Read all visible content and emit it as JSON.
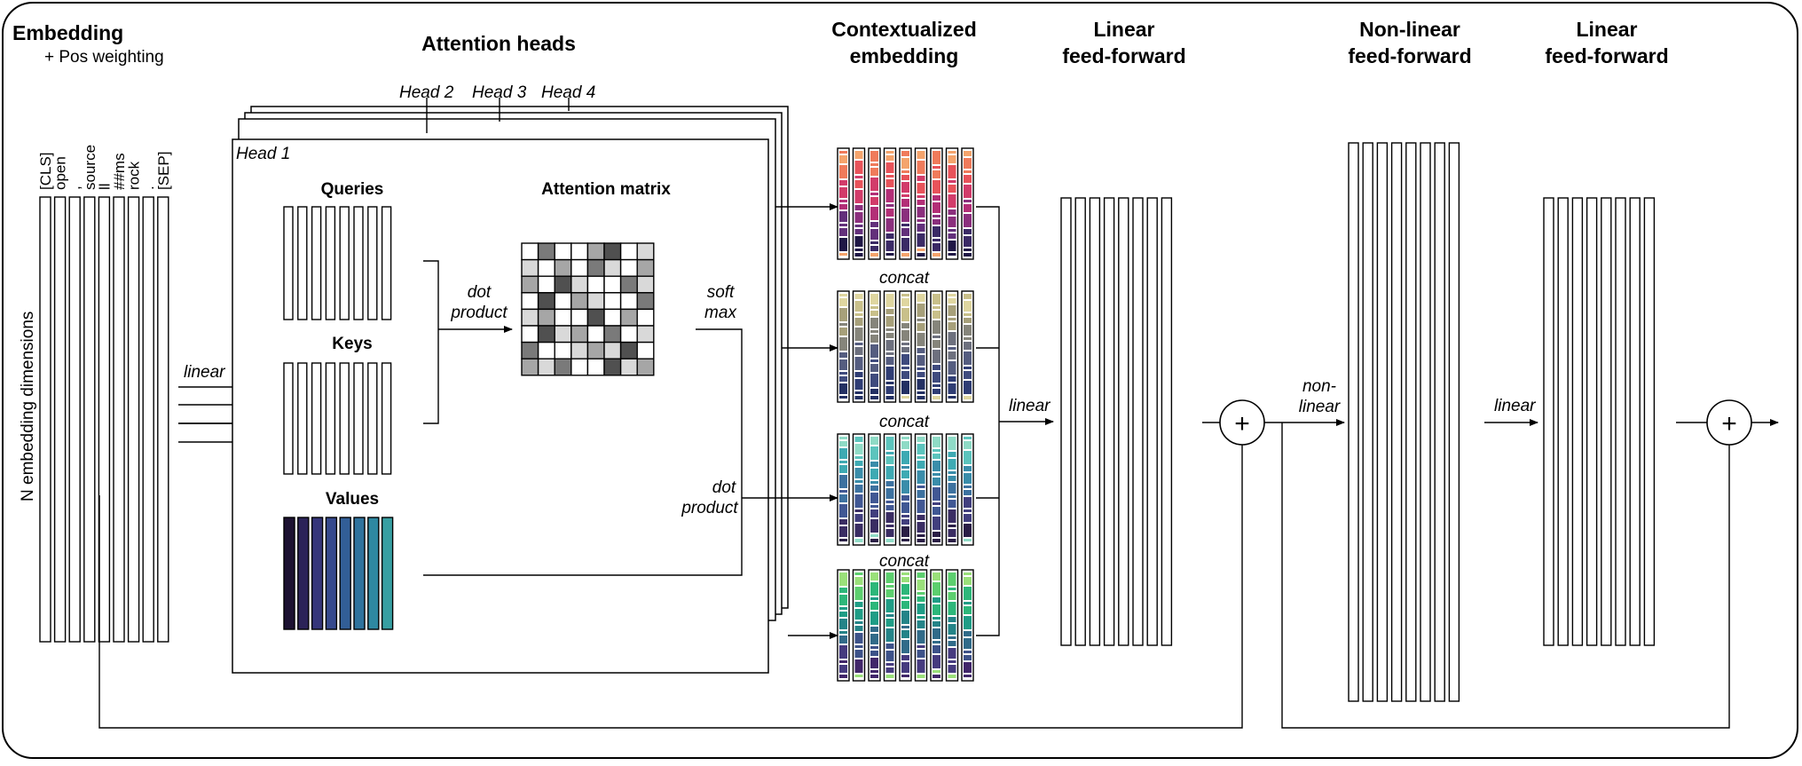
{
  "sections": {
    "embedding_title": "Embedding",
    "embedding_subtitle": "+ Pos weighting",
    "attention_title": "Attention heads",
    "contextualized_line1": "Contextualized",
    "contextualized_line2": "embedding",
    "linear_ff1_line1": "Linear",
    "linear_ff1_line2": "feed-forward",
    "nonlinear_ff_line1": "Non-linear",
    "nonlinear_ff_line2": "feed-forward",
    "linear_ff2_line1": "Linear",
    "linear_ff2_line2": "feed-forward"
  },
  "axis_label": "N embedding dimensions",
  "tokens": [
    "[CLS]",
    "open",
    ",",
    "source",
    "ll",
    "##ms",
    "rock",
    ".",
    "[SEP]"
  ],
  "heads": {
    "head1": "Head 1",
    "head2": "Head 2",
    "head3": "Head 3",
    "head4": "Head 4"
  },
  "panels": {
    "queries": "Queries",
    "keys": "Keys",
    "values": "Values",
    "attention_matrix": "Attention matrix"
  },
  "labels": {
    "linear_in": "linear",
    "dot_product_1a": "dot",
    "dot_product_1b": "product",
    "softmax_a": "soft",
    "softmax_b": "max",
    "dot_product_2a": "dot",
    "dot_product_2b": "product",
    "concat_1": "concat",
    "concat_2": "concat",
    "concat_3": "concat",
    "linear_mid": "linear",
    "nonlinear_a": "non-",
    "nonlinear_b": "linear",
    "linear_out": "linear",
    "plus_1": "+",
    "plus_2": "+"
  },
  "colors": {
    "values_gradient": [
      "#1d1232",
      "#2b2358",
      "#35357a",
      "#36498d",
      "#325e97",
      "#2f739d",
      "#2e88a1",
      "#379fa2",
      "#50b3a0"
    ],
    "head1_palette": [
      "#f5a46c",
      "#f07b5b",
      "#e8535a",
      "#d23c6a",
      "#b32f77",
      "#8b2f7d",
      "#63307b",
      "#3b2a66",
      "#1f1745"
    ],
    "head2_palette": [
      "#dfd6a0",
      "#c9c08a",
      "#a7a07a",
      "#86857b",
      "#6d707e",
      "#555d80",
      "#3f4b7e",
      "#2f3d74",
      "#233063"
    ],
    "head3_palette": [
      "#8fdbc6",
      "#5cc4bd",
      "#3eaab3",
      "#3a8daa",
      "#3d72a0",
      "#415894",
      "#423f7e",
      "#3a2d63",
      "#2a1e46"
    ],
    "head4_palette": [
      "#9ae07a",
      "#5ccf6e",
      "#2db77a",
      "#1f9d86",
      "#248488",
      "#316b89",
      "#3d5289",
      "#463b7f",
      "#41266a"
    ],
    "attention_grays": [
      "#ffffff",
      "#d9d9d9",
      "#a6a6a6",
      "#7a7a7a",
      "#505050"
    ]
  }
}
